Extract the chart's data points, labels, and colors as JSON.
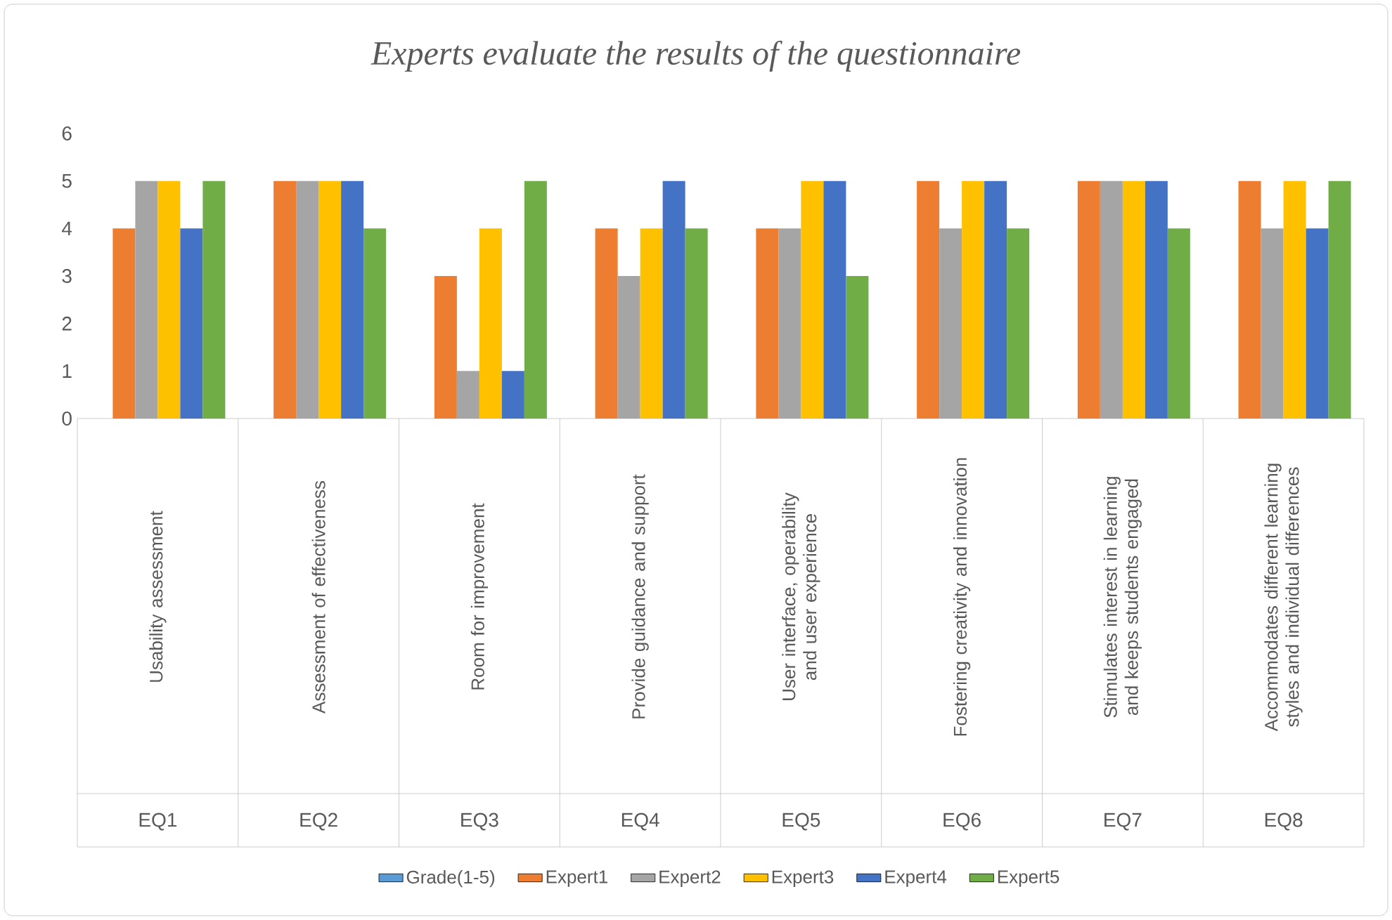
{
  "chart_data": {
    "type": "bar",
    "title": "Experts evaluate the results of the questionnaire",
    "categories": [
      "Usability assessment",
      "Assessment of effectiveness",
      "Room for improvement",
      "Provide guidance and support",
      "User interface, operability and user experience",
      "Fostering creativity and innovation",
      "Stimulates interest in learning and keeps students engaged",
      "Accommodates different learning styles and individual differences"
    ],
    "annotations": [
      "EQ1",
      "EQ2",
      "EQ3",
      "EQ4",
      "EQ5",
      "EQ6",
      "EQ7",
      "EQ8"
    ],
    "series": [
      {
        "name": "Grade(1-5)",
        "color": "#5b9bd5",
        "values": [
          null,
          null,
          null,
          null,
          null,
          null,
          null,
          null
        ]
      },
      {
        "name": "Expert1",
        "color": "#ed7d31",
        "values": [
          4,
          5,
          3,
          4,
          4,
          5,
          5,
          5
        ]
      },
      {
        "name": "Expert2",
        "color": "#a5a5a5",
        "values": [
          5,
          5,
          1,
          3,
          4,
          4,
          5,
          4
        ]
      },
      {
        "name": "Expert3",
        "color": "#ffc000",
        "values": [
          5,
          5,
          4,
          4,
          5,
          5,
          5,
          5
        ]
      },
      {
        "name": "Expert4",
        "color": "#4472c4",
        "values": [
          4,
          5,
          1,
          5,
          5,
          5,
          5,
          4
        ]
      },
      {
        "name": "Expert5",
        "color": "#70ad47",
        "values": [
          5,
          4,
          5,
          4,
          3,
          4,
          4,
          5
        ]
      }
    ],
    "ylim": [
      0,
      6
    ],
    "yticks": [
      0,
      1,
      2,
      3,
      4,
      5,
      6
    ],
    "legend": "bottom"
  }
}
